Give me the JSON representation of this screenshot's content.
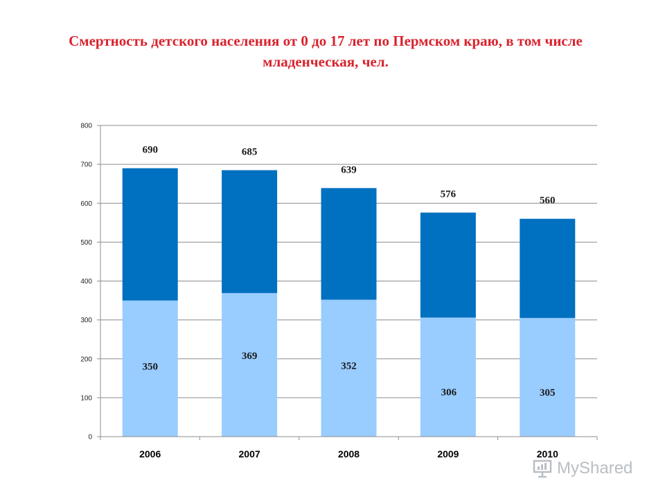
{
  "title": {
    "line1": "Смертность детского населения от 0 до 17 лет по Пермском краю, в том числе",
    "line2": "младенческая, чел."
  },
  "chart_data": {
    "type": "bar",
    "stacked": true,
    "categories": [
      "2006",
      "2007",
      "2008",
      "2009",
      "2010"
    ],
    "totals": [
      690,
      685,
      639,
      576,
      560
    ],
    "series": [
      {
        "values": [
          350,
          369,
          352,
          306,
          305
        ],
        "color": "#99ccff"
      },
      {
        "values": [
          340,
          316,
          287,
          270,
          255
        ],
        "color": "#0070c0"
      }
    ],
    "total_labels": [
      "690",
      "685",
      "639",
      "576",
      "560"
    ],
    "lower_labels": [
      "350",
      "369",
      "352",
      "306",
      "305"
    ],
    "y_ticks": [
      "0",
      "100",
      "200",
      "300",
      "400",
      "500",
      "600",
      "700",
      "800"
    ],
    "ylim": [
      0,
      800
    ],
    "grid": true,
    "legend": "none"
  },
  "watermark": {
    "text": "MyShared",
    "icon": "presentation-board-icon"
  }
}
